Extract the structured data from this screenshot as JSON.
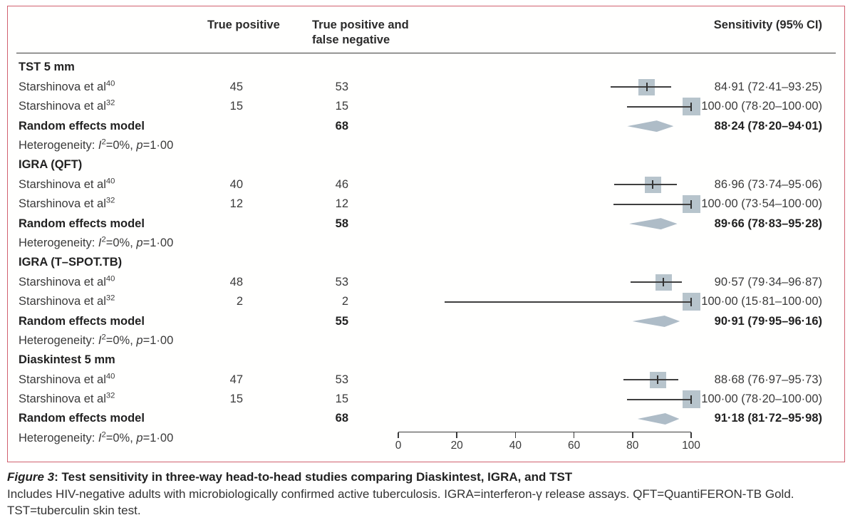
{
  "columns": {
    "true_positive": "True positive",
    "true_positive_false_negative": "True positive and false negative",
    "sensitivity": "Sensitivity (95% CI)"
  },
  "caption": {
    "figure_label": "Figure 3",
    "title": ": Test sensitivity in three-way head-to-head studies comparing Diaskintest, IGRA, and TST",
    "footnote": "Includes HIV-negative adults with microbiologically confirmed active tuberculosis. IGRA=interferon-γ release assays. QFT=QuantiFERON-TB Gold. TST=tuberculin skin test."
  },
  "chart_data": {
    "type": "forest",
    "xlim": [
      0,
      100
    ],
    "axis_ticks": [
      0,
      20,
      40,
      60,
      80,
      100
    ],
    "sections": [
      {
        "name": "TST 5 mm",
        "studies": [
          {
            "label": "Starshinova et al",
            "ref": "40",
            "tp": "45",
            "n": "53",
            "est": 84.91,
            "lo": 72.41,
            "hi": 93.25,
            "ci_text": "84·91 (72·41–93·25)",
            "sq": 23
          },
          {
            "label": "Starshinova et al",
            "ref": "32",
            "tp": "15",
            "n": "15",
            "est": 100.0,
            "lo": 78.2,
            "hi": 100.0,
            "ci_text": "100·00 (78·20–100·00)",
            "sq": 25
          }
        ],
        "random": {
          "label": "Random effects model",
          "n": "68",
          "est": 88.24,
          "lo": 78.2,
          "hi": 94.01,
          "ci_text": "88·24 (78·20–94·01)"
        },
        "heterogeneity": "Heterogeneity: I²=0%, p=1·00"
      },
      {
        "name": "IGRA (QFT)",
        "studies": [
          {
            "label": "Starshinova et al",
            "ref": "40",
            "tp": "40",
            "n": "46",
            "est": 86.96,
            "lo": 73.74,
            "hi": 95.06,
            "ci_text": "86·96 (73·74–95·06)",
            "sq": 23
          },
          {
            "label": "Starshinova et al",
            "ref": "32",
            "tp": "12",
            "n": "12",
            "est": 100.0,
            "lo": 73.54,
            "hi": 100.0,
            "ci_text": "100·00 (73·54–100·00)",
            "sq": 25
          }
        ],
        "random": {
          "label": "Random effects model",
          "n": "58",
          "est": 89.66,
          "lo": 78.83,
          "hi": 95.28,
          "ci_text": "89·66 (78·83–95·28)"
        },
        "heterogeneity": "Heterogeneity: I²=0%, p=1·00"
      },
      {
        "name": "IGRA (T–SPOT.TB)",
        "studies": [
          {
            "label": "Starshinova et al",
            "ref": "40",
            "tp": "48",
            "n": "53",
            "est": 90.57,
            "lo": 79.34,
            "hi": 96.87,
            "ci_text": "90·57 (79·34–96·87)",
            "sq": 23
          },
          {
            "label": "Starshinova et al",
            "ref": "32",
            "tp": "2",
            "n": "2",
            "est": 100.0,
            "lo": 15.81,
            "hi": 100.0,
            "ci_text": "100·00 (15·81–100·00)",
            "sq": 25
          }
        ],
        "random": {
          "label": "Random effects model",
          "n": "55",
          "est": 90.91,
          "lo": 79.95,
          "hi": 96.16,
          "ci_text": "90·91 (79·95–96·16)"
        },
        "heterogeneity": "Heterogeneity: I²=0%, p=1·00"
      },
      {
        "name": "Diaskintest 5 mm",
        "studies": [
          {
            "label": "Starshinova et al",
            "ref": "40",
            "tp": "47",
            "n": "53",
            "est": 88.68,
            "lo": 76.97,
            "hi": 95.73,
            "ci_text": "88·68 (76·97–95·73)",
            "sq": 23
          },
          {
            "label": "Starshinova et al",
            "ref": "32",
            "tp": "15",
            "n": "15",
            "est": 100.0,
            "lo": 78.2,
            "hi": 100.0,
            "ci_text": "100·00 (78·20–100·00)",
            "sq": 25
          }
        ],
        "random": {
          "label": "Random effects model",
          "n": "68",
          "est": 91.18,
          "lo": 81.72,
          "hi": 95.98,
          "ci_text": "91·18 (81·72–95·98)"
        },
        "heterogeneity": "Heterogeneity: I²=0%, p=1·00"
      }
    ]
  },
  "colors": {
    "border_red": "#d0606f",
    "square_fill": "#b7c4cc",
    "diamond_fill": "#aebcc7",
    "line": "#3f3f3f",
    "text": "#3a3a3a"
  }
}
